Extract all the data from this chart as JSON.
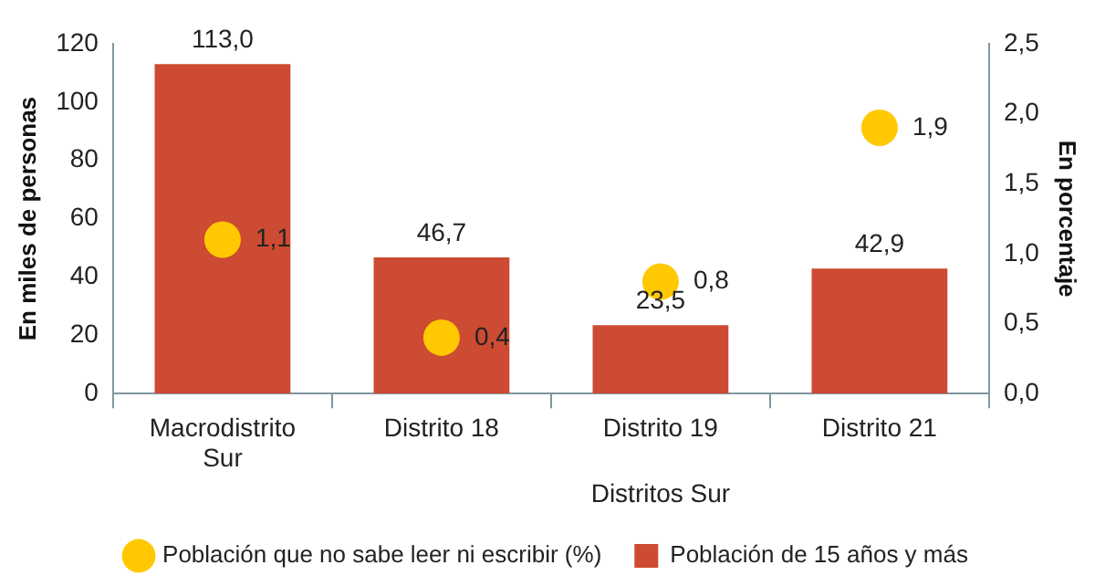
{
  "chart_data": {
    "type": "bar",
    "categories": [
      "Macrodistrito Sur",
      "Distrito 18",
      "Distrito 19",
      "Distrito 21"
    ],
    "xlabel": "Distritos Sur",
    "ylabel": "En miles de personas",
    "y2label": "En porcentaje",
    "ylim": [
      0,
      120
    ],
    "yticks": [
      0,
      20,
      40,
      60,
      80,
      100,
      120
    ],
    "y2lim": [
      0,
      2.5
    ],
    "y2ticks": [
      {
        "value": 0,
        "label": "0,0"
      },
      {
        "value": 0.5,
        "label": "0,5"
      },
      {
        "value": 1,
        "label": "1,0"
      },
      {
        "value": 1.5,
        "label": "1,5"
      },
      {
        "value": 2,
        "label": "2,0"
      },
      {
        "value": 2.5,
        "label": "2,5"
      }
    ],
    "series": [
      {
        "name": "Población de 15 años y más",
        "color": "#cc4b32",
        "values": [
          113.0,
          46.7,
          23.5,
          42.9
        ],
        "value_labels": [
          "113,0",
          "46,7",
          "23,5",
          "42,9"
        ]
      },
      {
        "name": "Población que no sabe leer ni escribir (%)",
        "type": "scatter",
        "axis": "y2",
        "color": "#ffc800",
        "marker": "circle",
        "values": [
          1.1,
          0.4,
          0.8,
          1.9
        ],
        "value_labels": [
          "1,1",
          "0,4",
          "0,8",
          "1,9"
        ]
      }
    ],
    "grid": false,
    "legend": "bottom"
  }
}
